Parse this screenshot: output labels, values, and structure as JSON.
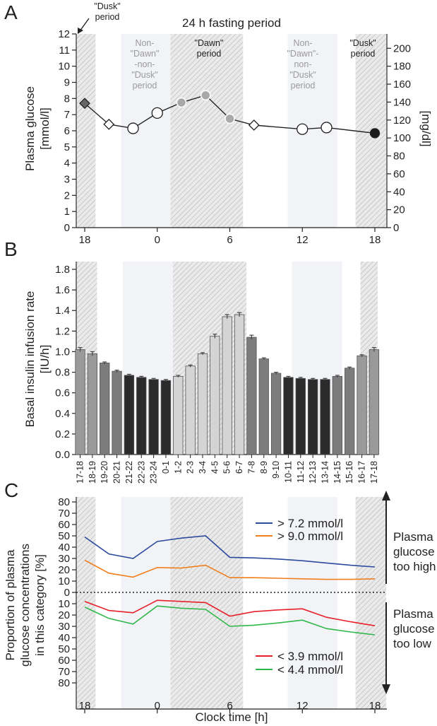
{
  "chart_data": [
    {
      "panel": "A",
      "type": "line",
      "title": "24 h fasting period",
      "ylabel": "Plasma glucose [mmol/l]",
      "ylabel_lines": [
        "Plasma glucose",
        "[mmol/l]"
      ],
      "ylabel_right": "[mg/dl]",
      "ylim": [
        0,
        12
      ],
      "yticks": [
        "0",
        "1",
        "2",
        "3",
        "4",
        "5",
        "6",
        "7",
        "8",
        "9",
        "10",
        "11",
        "12"
      ],
      "yticks_right": [
        "0",
        "20",
        "40",
        "60",
        "80",
        "100",
        "120",
        "140",
        "160",
        "180",
        "200"
      ],
      "xticks": [
        "18",
        "0",
        "6",
        "12",
        "18"
      ],
      "period_labels": {
        "dusk_arrow_lines": [
          "\"Dusk\"",
          "period"
        ],
        "non1_lines": [
          "Non-",
          "\"Dawn\"",
          "-non-",
          "\"Dusk\"",
          "period"
        ],
        "dawn_lines": [
          "\"Dawn\"",
          "period"
        ],
        "non2_lines": [
          "Non-",
          "\"Dawn\"-",
          "non-",
          "\"Dusk\"",
          "period"
        ],
        "dusk_lines": [
          "\"Dusk\"",
          "period"
        ]
      },
      "points": [
        {
          "t": 18.0,
          "value": 7.7,
          "marker": "diamond-dark"
        },
        {
          "t": 20.0,
          "value": 6.4,
          "marker": "diamond-open"
        },
        {
          "t": 22.0,
          "value": 6.15,
          "marker": "circle-open"
        },
        {
          "t": 24.0,
          "value": 7.1,
          "marker": "circle-open"
        },
        {
          "t": 26.0,
          "value": 7.75,
          "marker": "circle-grey"
        },
        {
          "t": 28.0,
          "value": 8.2,
          "marker": "circle-grey"
        },
        {
          "t": 30.0,
          "value": 6.75,
          "marker": "circle-grey"
        },
        {
          "t": 32.0,
          "value": 6.35,
          "marker": "diamond-open"
        },
        {
          "t": 36.0,
          "value": 6.1,
          "marker": "circle-open"
        },
        {
          "t": 38.0,
          "value": 6.2,
          "marker": "circle-open"
        },
        {
          "t": 42.0,
          "value": 5.85,
          "marker": "circle-black"
        }
      ]
    },
    {
      "panel": "B",
      "type": "bar",
      "ylabel": "Basal insulin infusion rate [IU/h]",
      "ylabel_lines": [
        "Basal insulin infusion rate",
        "[IU/h]"
      ],
      "ylim": [
        0,
        1.9
      ],
      "yticks": [
        "0.0",
        "0.2",
        "0.4",
        "0.6",
        "0.8",
        "1.0",
        "1.2",
        "1.4",
        "1.6",
        "1.8"
      ],
      "categories": [
        "17-18",
        "18-19",
        "19-20",
        "20-21",
        "21-22",
        "22-23",
        "23-24",
        "0-1",
        "1-2",
        "2-3",
        "3-4",
        "4-5",
        "5-6",
        "6-7",
        "7-8",
        "8-9",
        "9-10",
        "10-11",
        "11-12",
        "12-13",
        "13-14",
        "14-15",
        "15-16",
        "16-17",
        "17-18"
      ],
      "values": [
        1.02,
        0.98,
        0.89,
        0.81,
        0.77,
        0.75,
        0.73,
        0.72,
        0.76,
        0.86,
        0.98,
        1.15,
        1.34,
        1.36,
        1.14,
        0.93,
        0.79,
        0.75,
        0.74,
        0.73,
        0.73,
        0.76,
        0.84,
        0.96,
        1.02
      ],
      "errors": [
        0.02,
        0.02,
        0.01,
        0.01,
        0.01,
        0.01,
        0.01,
        0.01,
        0.01,
        0.01,
        0.01,
        0.02,
        0.02,
        0.02,
        0.02,
        0.01,
        0.01,
        0.01,
        0.01,
        0.01,
        0.01,
        0.01,
        0.01,
        0.01,
        0.02
      ],
      "bar_colors": [
        "#9a9a9a",
        "#9a9a9a",
        "#7c7c7c",
        "#7c7c7c",
        "#2b2b2b",
        "#2b2b2b",
        "#2b2b2b",
        "#2b2b2b",
        "#d4d4d4",
        "#d4d4d4",
        "#d4d4d4",
        "#d4d4d4",
        "#d4d4d4",
        "#d4d4d4",
        "#7c7c7c",
        "#7c7c7c",
        "#7c7c7c",
        "#2b2b2b",
        "#2b2b2b",
        "#2b2b2b",
        "#2b2b2b",
        "#7c7c7c",
        "#7c7c7c",
        "#9a9a9a",
        "#9a9a9a"
      ]
    },
    {
      "panel": "C",
      "type": "line",
      "xlabel": "Clock time [h]",
      "ylabel": "Proportion of plasma glucose concentrations in this category [%]",
      "ylabel_lines": [
        "Proportion of plasma",
        "glucose concentrations",
        "in this category [%]"
      ],
      "yticks_upper": [
        "0",
        "10",
        "20",
        "30",
        "40",
        "50",
        "60",
        "70",
        "80"
      ],
      "yticks_lower": [
        "10",
        "20",
        "30",
        "40",
        "50",
        "60",
        "70",
        "80"
      ],
      "xticks": [
        "18",
        "0",
        "6",
        "12",
        "18"
      ],
      "high_label_lines": [
        "Plasma",
        "glucose",
        "too high"
      ],
      "low_label_lines": [
        "Plasma",
        "glucose",
        "too low"
      ],
      "series_upper": [
        {
          "name": "> 7.2 mmol/l",
          "color": "#2c4a9e",
          "t": [
            18,
            20,
            22,
            24,
            26,
            28,
            30,
            32,
            34,
            36,
            38,
            40,
            42
          ],
          "values": [
            49,
            34,
            30,
            45,
            48,
            50,
            31,
            30.5,
            29.5,
            28,
            26,
            24,
            22.5
          ]
        },
        {
          "name": "> 9.0 mmol/l",
          "color": "#f07f1e",
          "t": [
            18,
            20,
            22,
            24,
            26,
            28,
            30,
            32,
            34,
            36,
            38,
            40,
            42
          ],
          "values": [
            28.5,
            17,
            13.5,
            22,
            21.5,
            24,
            13,
            13,
            12.5,
            12,
            11.5,
            11.5,
            12
          ]
        }
      ],
      "series_lower": [
        {
          "name": "< 3.9 mmol/l",
          "color": "#e8202a",
          "t": [
            18,
            20,
            22,
            24,
            26,
            28,
            30,
            32,
            34,
            36,
            38,
            40,
            42
          ],
          "values": [
            8,
            16,
            18,
            7,
            8,
            9,
            21,
            17,
            15.5,
            14.5,
            22,
            26,
            29.5
          ]
        },
        {
          "name": "< 4.4 mmol/l",
          "color": "#2fb84a",
          "t": [
            18,
            20,
            22,
            24,
            26,
            28,
            30,
            32,
            34,
            36,
            38,
            40,
            42
          ],
          "values": [
            13,
            23,
            28,
            12,
            14,
            15,
            30,
            29,
            27,
            24.5,
            32,
            35,
            37.5
          ]
        }
      ]
    }
  ],
  "panel_letters": [
    "A",
    "B",
    "C"
  ]
}
